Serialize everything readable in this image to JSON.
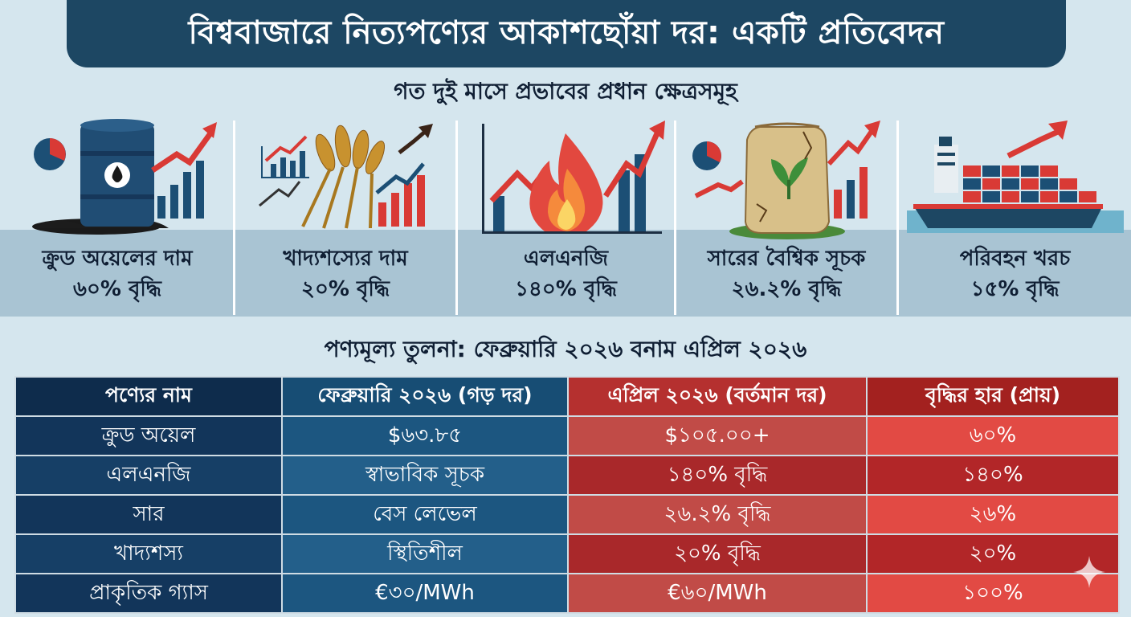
{
  "title": "বিশ্ববাজারে নিত্যপণ্যের আকাশছোঁয়া দর: একটি প্রতিবেদন",
  "subtitle": "গত দুই মাসে প্রভাবের প্রধান ক্ষেত্রসমূহ",
  "panels": [
    {
      "name": "ক্রুড অয়েলের দাম",
      "change": "৬০% বৃদ্ধি",
      "icon": "oil-barrel-icon"
    },
    {
      "name": "খাদ্যশস্যের দাম",
      "change": "২০% বৃদ্ধি",
      "icon": "wheat-icon"
    },
    {
      "name": "এলএনজি",
      "change": "১৪০% বৃদ্ধি",
      "icon": "flame-icon"
    },
    {
      "name": "সারের বৈশ্বিক সূচক",
      "change": "২৬.২% বৃদ্ধি",
      "icon": "fertilizer-sack-icon"
    },
    {
      "name": "পরিবহন খরচ",
      "change": "১৫% বৃদ্ধি",
      "icon": "cargo-ship-icon"
    }
  ],
  "table": {
    "title": "পণ্যমূল্য তুলনা: ফেব্রুয়ারি ২০২৬ বনাম এপ্রিল ২০২৬",
    "headers": [
      "পণ্যের নাম",
      "ফেব্রুয়ারি ২০২৬ (গড় দর)",
      "এপ্রিল ২০২৬ (বর্তমান দর)",
      "বৃদ্ধির হার (প্রায়)"
    ],
    "rows": [
      [
        "ক্রুড অয়েল",
        "$৬৩.৮৫",
        "$১০৫.০০+",
        "৬০%"
      ],
      [
        "এলএনজি",
        "স্বাভাবিক সূচক",
        "১৪০% বৃদ্ধি",
        "১৪০%"
      ],
      [
        "সার",
        "বেস লেভেল",
        "২৬.২% বৃদ্ধি",
        "২৬%"
      ],
      [
        "খাদ্যশস্য",
        "স্থিতিশীল",
        "২০% বৃদ্ধি",
        "২০%"
      ],
      [
        "প্রাকৃতিক গ্যাস",
        "€৩০/MWh",
        "€৬০/MWh",
        "১০০%"
      ]
    ]
  },
  "colors": {
    "title_bg": "#1d4763",
    "accent_red": "#d93a35",
    "accent_navy": "#1c4f75"
  }
}
